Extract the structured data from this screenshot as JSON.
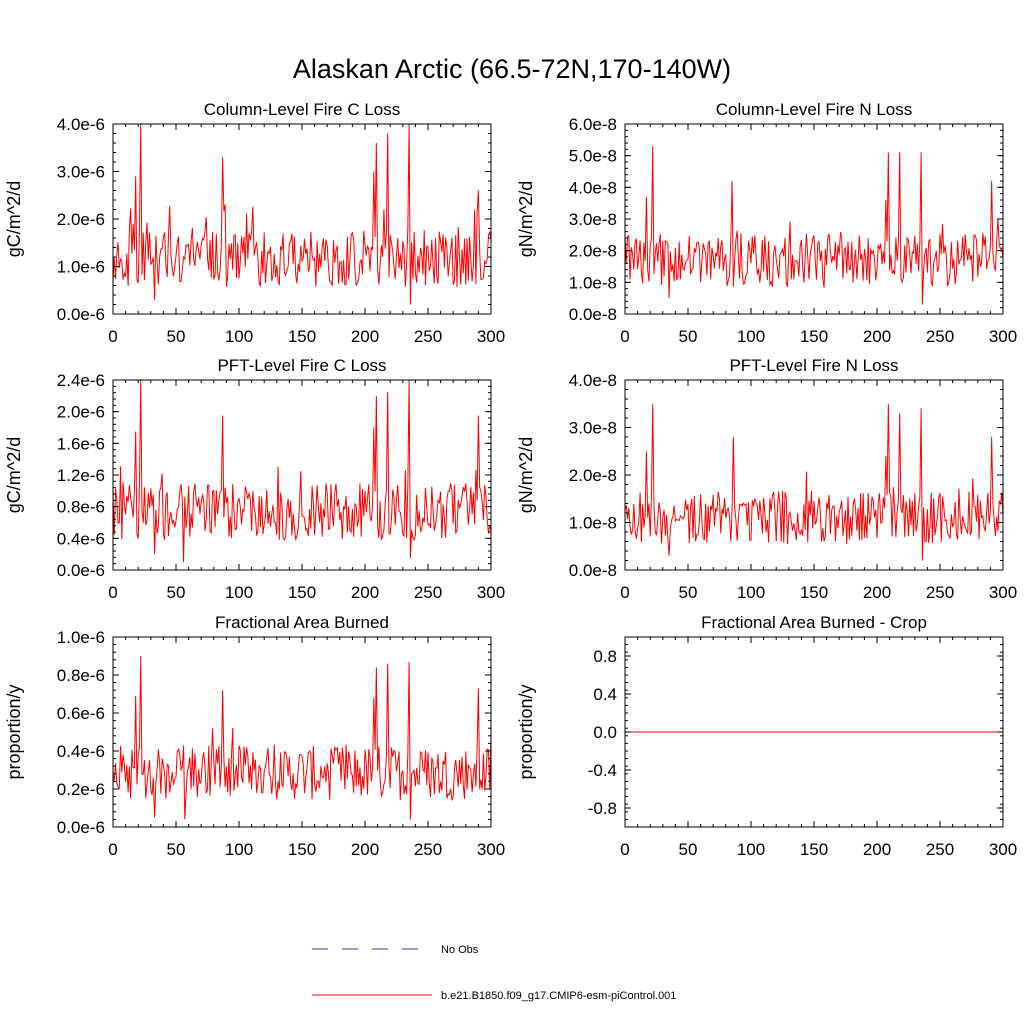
{
  "figure_title": "Alaskan Arctic (66.5-72N,170-140W)",
  "legend": [
    {
      "label": "No Obs",
      "color": "#3a3aa8",
      "style": "dashed"
    },
    {
      "label": "b.e21.B1850.f09_g17.CMIP6-esm-piControl.001",
      "color": "#ff0000",
      "style": "solid"
    }
  ],
  "chart_data": [
    {
      "type": "line",
      "title": "Column-Level Fire C Loss",
      "xlabel": "",
      "ylabel": "gC/m^2/d",
      "xlim": [
        0,
        300
      ],
      "ylim": [
        0,
        4e-06
      ],
      "xticks": [
        0,
        50,
        100,
        150,
        200,
        250,
        300
      ],
      "xtick_labels": [
        "0",
        "50",
        "100",
        "150",
        "200",
        "250",
        "300"
      ],
      "yticks": [
        0,
        1e-06,
        2e-06,
        3e-06,
        4e-06
      ],
      "ytick_labels": [
        "0.0e-6",
        "1.0e-6",
        "2.0e-6",
        "3.0e-6",
        "4.0e-6"
      ],
      "series": [
        {
          "name": "b.e21.B1850.f09_g17.CMIP6-esm-piControl.001",
          "color": "#ff0000",
          "base": 1.1e-06,
          "spread": 7.5e-07,
          "peaks": [
            [
              18,
              2.9e-06
            ],
            [
              22,
              4e-06
            ],
            [
              87,
              3.3e-06
            ],
            [
              207,
              3e-06
            ],
            [
              209,
              3.6e-06
            ],
            [
              215,
              2.2e-06
            ],
            [
              218,
              3.8e-06
            ],
            [
              235,
              4e-06
            ],
            [
              287,
              2.2e-06
            ],
            [
              290,
              2.6e-06
            ]
          ],
          "lows": [
            [
              33,
              3e-07
            ],
            [
              236,
              2e-07
            ]
          ]
        }
      ]
    },
    {
      "type": "line",
      "title": "Column-Level Fire N Loss",
      "xlabel": "",
      "ylabel": "gN/m^2/d",
      "xlim": [
        0,
        300
      ],
      "ylim": [
        0,
        6e-08
      ],
      "xticks": [
        0,
        50,
        100,
        150,
        200,
        250,
        300
      ],
      "xtick_labels": [
        "0",
        "50",
        "100",
        "150",
        "200",
        "250",
        "300"
      ],
      "yticks": [
        0,
        1e-08,
        2e-08,
        3e-08,
        4e-08,
        5e-08,
        6e-08
      ],
      "ytick_labels": [
        "0.0e-8",
        "1.0e-8",
        "2.0e-8",
        "3.0e-8",
        "4.0e-8",
        "5.0e-8",
        "6.0e-8"
      ],
      "series": [
        {
          "name": "b.e21.B1850.f09_g17.CMIP6-esm-piControl.001",
          "color": "#ff0000",
          "base": 1.6e-08,
          "spread": 1.1e-08,
          "peaks": [
            [
              17,
              3.7e-08
            ],
            [
              22,
              5.3e-08
            ],
            [
              85,
              4.2e-08
            ],
            [
              207,
              3.6e-08
            ],
            [
              209,
              5.1e-08
            ],
            [
              218,
              5.1e-08
            ],
            [
              235,
              5.1e-08
            ],
            [
              291,
              4.2e-08
            ]
          ],
          "lows": [
            [
              35,
              5e-09
            ],
            [
              236,
              3e-09
            ]
          ]
        }
      ]
    },
    {
      "type": "line",
      "title": "PFT-Level Fire C Loss",
      "xlabel": "",
      "ylabel": "gC/m^2/d",
      "xlim": [
        0,
        300
      ],
      "ylim": [
        0,
        2.4e-06
      ],
      "xticks": [
        0,
        50,
        100,
        150,
        200,
        250,
        300
      ],
      "xtick_labels": [
        "0",
        "50",
        "100",
        "150",
        "200",
        "250",
        "300"
      ],
      "yticks": [
        0,
        4e-07,
        8e-07,
        1.2e-06,
        1.6e-06,
        2e-06,
        2.4e-06
      ],
      "ytick_labels": [
        "0.0e-6",
        "0.4e-6",
        "0.8e-6",
        "1.2e-6",
        "1.6e-6",
        "2.0e-6",
        "2.4e-6"
      ],
      "series": [
        {
          "name": "b.e21.B1850.f09_g17.CMIP6-esm-piControl.001",
          "color": "#ff0000",
          "base": 7e-07,
          "spread": 4.5e-07,
          "peaks": [
            [
              18,
              1.75e-06
            ],
            [
              22,
              2.4e-06
            ],
            [
              87,
              1.95e-06
            ],
            [
              207,
              1.8e-06
            ],
            [
              209,
              2.2e-06
            ],
            [
              218,
              2.25e-06
            ],
            [
              235,
              2.4e-06
            ],
            [
              290,
              1.95e-06
            ]
          ],
          "lows": [
            [
              33,
              2e-07
            ],
            [
              56,
              1e-07
            ],
            [
              236,
              1.5e-07
            ]
          ]
        }
      ]
    },
    {
      "type": "line",
      "title": "PFT-Level Fire N Loss",
      "xlabel": "",
      "ylabel": "gN/m^2/d",
      "xlim": [
        0,
        300
      ],
      "ylim": [
        0,
        4e-08
      ],
      "xticks": [
        0,
        50,
        100,
        150,
        200,
        250,
        300
      ],
      "xtick_labels": [
        "0",
        "50",
        "100",
        "150",
        "200",
        "250",
        "300"
      ],
      "yticks": [
        0,
        1e-08,
        2e-08,
        3e-08,
        4e-08
      ],
      "ytick_labels": [
        "0.0e-8",
        "1.0e-8",
        "2.0e-8",
        "3.0e-8",
        "4.0e-8"
      ],
      "series": [
        {
          "name": "b.e21.B1850.f09_g17.CMIP6-esm-piControl.001",
          "color": "#ff0000",
          "base": 1.05e-08,
          "spread": 7e-09,
          "peaks": [
            [
              17,
              2.5e-08
            ],
            [
              22,
              3.5e-08
            ],
            [
              86,
              2.8e-08
            ],
            [
              207,
              2.4e-08
            ],
            [
              209,
              3.5e-08
            ],
            [
              218,
              3.3e-08
            ],
            [
              235,
              3.4e-08
            ],
            [
              291,
              2.8e-08
            ]
          ],
          "lows": [
            [
              35,
              3e-09
            ],
            [
              236,
              2e-09
            ]
          ]
        }
      ]
    },
    {
      "type": "line",
      "title": "Fractional Area Burned",
      "xlabel": "",
      "ylabel": "proportion/y",
      "xlim": [
        0,
        300
      ],
      "ylim": [
        0,
        1e-06
      ],
      "xticks": [
        0,
        50,
        100,
        150,
        200,
        250,
        300
      ],
      "xtick_labels": [
        "0",
        "50",
        "100",
        "150",
        "200",
        "250",
        "300"
      ],
      "yticks": [
        0,
        2e-07,
        4e-07,
        6e-07,
        8e-07,
        1e-06
      ],
      "ytick_labels": [
        "0.0e-6",
        "0.2e-6",
        "0.4e-6",
        "0.6e-6",
        "0.8e-6",
        "1.0e-6"
      ],
      "series": [
        {
          "name": "b.e21.B1850.f09_g17.CMIP6-esm-piControl.001",
          "color": "#ff0000",
          "base": 2.7e-07,
          "spread": 1.8e-07,
          "peaks": [
            [
              18,
              6.9e-07
            ],
            [
              22,
              9e-07
            ],
            [
              87,
              7.2e-07
            ],
            [
              207,
              6.8e-07
            ],
            [
              209,
              8.4e-07
            ],
            [
              218,
              8.6e-07
            ],
            [
              235,
              8.7e-07
            ],
            [
              290,
              7.3e-07
            ]
          ],
          "lows": [
            [
              33,
              5e-08
            ],
            [
              57,
              4e-08
            ],
            [
              236,
              4e-08
            ]
          ]
        }
      ]
    },
    {
      "type": "line",
      "title": "Fractional Area Burned - Crop",
      "xlabel": "",
      "ylabel": "proportion/y",
      "xlim": [
        0,
        300
      ],
      "ylim": [
        -1.0,
        1.0
      ],
      "xticks": [
        0,
        50,
        100,
        150,
        200,
        250,
        300
      ],
      "xtick_labels": [
        "0",
        "50",
        "100",
        "150",
        "200",
        "250",
        "300"
      ],
      "yticks": [
        -0.8,
        -0.4,
        0.0,
        0.4,
        0.8
      ],
      "ytick_labels": [
        "-0.8",
        "-0.4",
        "0.0",
        "0.4",
        "0.8"
      ],
      "series": [
        {
          "name": "b.e21.B1850.f09_g17.CMIP6-esm-piControl.001",
          "color": "#ff0000",
          "constant": 0
        }
      ]
    }
  ]
}
